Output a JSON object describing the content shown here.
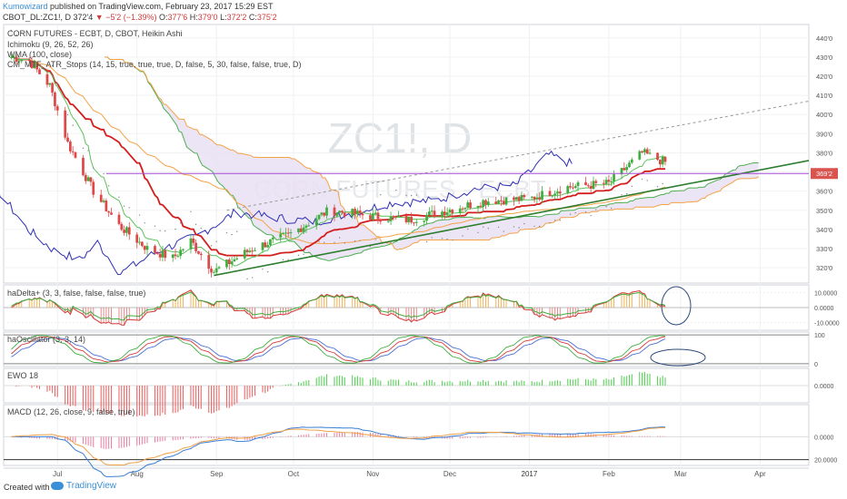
{
  "header": {
    "author": "Kumowizard",
    "published": "published on TradingView.com, February 23, 2017 15:29 EST",
    "symbol": "CBOT_DL:ZC1!, D",
    "last": "372'4",
    "change": "−5'2 (−1.39%)",
    "open_label": "O:",
    "open": "377'6",
    "high_label": "H:",
    "high": "379'0",
    "low_label": "L:",
    "low": "372'2",
    "close_label": "C:",
    "close": "375'2"
  },
  "main_labels": [
    "CORN FUTURES - ECBT, D, CBOT, Heikin Ashi",
    "Ichimoku (9, 26, 52, 26)",
    "WMA (100, close)",
    "CM_MTF_ATR_Stops (14, 15, true, true, true, D, false, 5, 30, false, false, true, D)"
  ],
  "watermark": {
    "symbol": "ZC1!, D",
    "name": "CORN FUTURES - ECBT"
  },
  "panes": {
    "hadelta": "haDelta+ (3, 3, false, false, false, true)",
    "haosc": "haOscillator (3, 3, 14)",
    "ewo": "EWO 18",
    "macd": "MACD (12, 26, close, 9, false, true)"
  },
  "price_axis_ticks": [
    "440'0",
    "430'0",
    "420'0",
    "410'0",
    "400'0",
    "390'0",
    "380'0",
    "370'0",
    "360'0",
    "350'0",
    "340'0",
    "330'0",
    "320'0"
  ],
  "price_marker": "369'2",
  "hadelta_ticks": [
    "10.0000",
    "0.0000",
    "-10.0000"
  ],
  "haosc_ticks": [
    "100",
    "0"
  ],
  "ewo_ticks": [
    "0.0000"
  ],
  "macd_ticks": [
    "0.0000",
    "20.0000"
  ],
  "x_axis_labels": [
    "Jul",
    "Aug",
    "Sep",
    "Oct",
    "Nov",
    "Dec",
    "2017",
    "Feb",
    "Mar",
    "Apr"
  ],
  "footer": {
    "created_with": "Created with",
    "logo": "TradingView"
  },
  "colors": {
    "bull": "#3fae3f",
    "bear": "#e04848",
    "kijun": "#d41e1e",
    "tenkan": "#2f2fb5",
    "span_a": "#4caf50",
    "span_b": "#f4a247",
    "cloud": "#e9e1f3",
    "trend": "#2e7d2e",
    "marker": "#a44bd6"
  },
  "chart_data": {
    "type": "candlestick",
    "price_range": [
      312,
      447
    ],
    "x_range": [
      "2016-06-10",
      "2017-04-20"
    ],
    "candle_period": [
      "2016-06-13",
      "2017-02-23"
    ],
    "price_path": [
      [
        "2016-06-13",
        430
      ],
      [
        "2016-06-20",
        428
      ],
      [
        "2016-06-28",
        415
      ],
      [
        "2016-07-05",
        385
      ],
      [
        "2016-07-15",
        360
      ],
      [
        "2016-07-25",
        342
      ],
      [
        "2016-08-05",
        330
      ],
      [
        "2016-08-15",
        325
      ],
      [
        "2016-08-22",
        334
      ],
      [
        "2016-08-31",
        318
      ],
      [
        "2016-09-15",
        330
      ],
      [
        "2016-09-29",
        337
      ],
      [
        "2016-10-15",
        350
      ],
      [
        "2016-10-31",
        347
      ],
      [
        "2016-11-15",
        345
      ],
      [
        "2016-11-30",
        350
      ],
      [
        "2016-12-15",
        355
      ],
      [
        "2017-01-01",
        356
      ],
      [
        "2017-01-15",
        362
      ],
      [
        "2017-02-01",
        364
      ],
      [
        "2017-02-14",
        380
      ],
      [
        "2017-02-23",
        375
      ]
    ],
    "trendline_up": [
      [
        "2016-08-31",
        316
      ],
      [
        "2017-04-20",
        376
      ]
    ],
    "trendline_dashed": [
      [
        "2016-09-05",
        350
      ],
      [
        "2017-04-20",
        407
      ]
    ],
    "horizontal_level": 369.2,
    "hadelta_range": [
      -15,
      15
    ],
    "haosc_range": [
      -10,
      110
    ],
    "ewo_range": [
      -10,
      10
    ],
    "macd_range": [
      -25,
      28
    ]
  }
}
